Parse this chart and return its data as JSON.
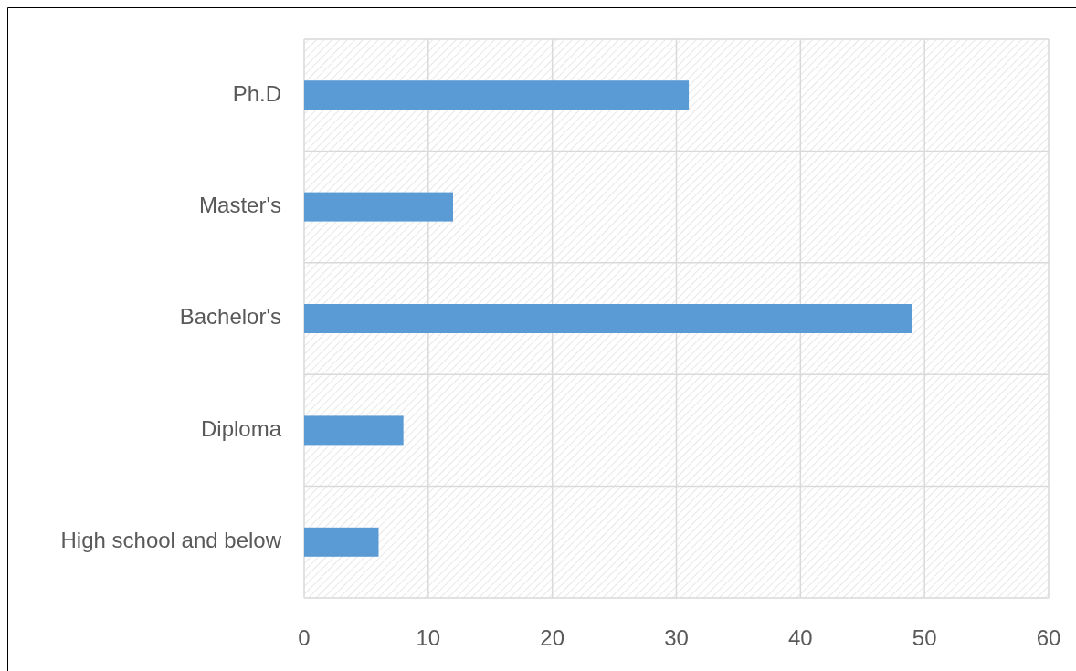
{
  "chart_data": {
    "type": "bar",
    "orientation": "horizontal",
    "categories": [
      "Ph.D",
      "Master's",
      "Bachelor's",
      "Diploma",
      "High school and below"
    ],
    "values": [
      31,
      12,
      49,
      8,
      6
    ],
    "color": "#5b9bd5",
    "xlim": [
      0,
      60
    ],
    "xticks": [
      0,
      10,
      20,
      30,
      40,
      50,
      60
    ],
    "grid": true
  }
}
